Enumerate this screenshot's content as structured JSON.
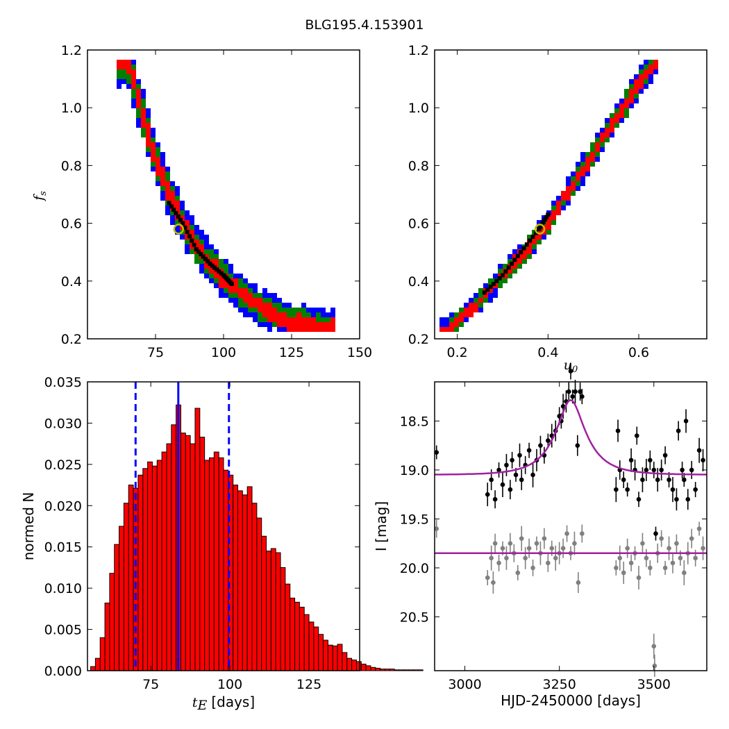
{
  "figure": {
    "title": "BLG195.4.153901"
  },
  "chart_data": [
    {
      "type": "heatmap",
      "panel": "tE-fs",
      "xlabel": "",
      "ylabel": "f_s",
      "ylabel_sub": "s",
      "xlim": [
        50,
        150
      ],
      "ylim": [
        0.2,
        1.2
      ],
      "xticks": [
        "75",
        "100",
        "125",
        "150"
      ],
      "yticks": [
        "0.2",
        "0.4",
        "0.6",
        "0.8",
        "1.0",
        "1.2"
      ],
      "levels": [
        {
          "name": "3-sigma",
          "color": "#0000ff",
          "width": 0.085
        },
        {
          "name": "2-sigma",
          "color": "#008000",
          "width": 0.058
        },
        {
          "name": "1-sigma",
          "color": "#ff0000",
          "width": 0.036
        }
      ],
      "ridge": [
        [
          65,
          1.16
        ],
        [
          70,
          0.98
        ],
        [
          75,
          0.82
        ],
        [
          80,
          0.7
        ],
        [
          85,
          0.6
        ],
        [
          90,
          0.52
        ],
        [
          95,
          0.46
        ],
        [
          100,
          0.41
        ],
        [
          105,
          0.37
        ],
        [
          110,
          0.33
        ],
        [
          115,
          0.3
        ],
        [
          120,
          0.28
        ],
        [
          125,
          0.26
        ],
        [
          130,
          0.25
        ],
        [
          140,
          0.24
        ]
      ],
      "best_fit_track": [
        [
          80,
          0.67
        ],
        [
          85,
          0.6
        ],
        [
          90,
          0.51
        ],
        [
          95,
          0.46
        ],
        [
          100,
          0.42
        ],
        [
          103,
          0.39
        ]
      ],
      "best_fit_point": [
        83.5,
        0.58
      ],
      "best_fit_color": "#bfbf00"
    },
    {
      "type": "heatmap",
      "panel": "u0-fs",
      "xlabel": "u_0",
      "xlabel_sub": "0",
      "ylabel": "",
      "xlim": [
        0.15,
        0.75
      ],
      "ylim": [
        0.2,
        1.2
      ],
      "xticks": [
        "0.2",
        "0.4",
        "0.6"
      ],
      "yticks": [
        "0.2",
        "0.4",
        "0.6",
        "0.8",
        "1.0",
        "1.2"
      ],
      "levels": [
        {
          "name": "3-sigma",
          "color": "#0000ff",
          "width": 0.05
        },
        {
          "name": "2-sigma",
          "color": "#008000",
          "width": 0.036
        },
        {
          "name": "1-sigma",
          "color": "#ff0000",
          "width": 0.022
        }
      ],
      "ridge": [
        [
          0.18,
          0.23
        ],
        [
          0.2,
          0.26
        ],
        [
          0.25,
          0.33
        ],
        [
          0.3,
          0.42
        ],
        [
          0.35,
          0.5
        ],
        [
          0.4,
          0.6
        ],
        [
          0.45,
          0.72
        ],
        [
          0.5,
          0.84
        ],
        [
          0.55,
          0.96
        ],
        [
          0.6,
          1.08
        ],
        [
          0.64,
          1.17
        ]
      ],
      "best_fit_track": [
        [
          0.26,
          0.36
        ],
        [
          0.3,
          0.42
        ],
        [
          0.34,
          0.5
        ],
        [
          0.38,
          0.58
        ],
        [
          0.4,
          0.63
        ]
      ],
      "best_fit_point": [
        0.382,
        0.58
      ],
      "best_fit_color": "#bfbf00"
    },
    {
      "type": "bar",
      "panel": "tE-histogram",
      "xlabel": "t_E",
      "xlabel_sub": "E",
      "xlabel_suffix": "[days]",
      "ylabel": "normed N",
      "xlim": [
        55,
        141
      ],
      "ylim": [
        0,
        0.035
      ],
      "xticks": [
        "75",
        "100",
        "125"
      ],
      "yticks": [
        "0.000",
        "0.005",
        "0.010",
        "0.015",
        "0.020",
        "0.025",
        "0.030",
        "0.035"
      ],
      "bar_color": "#ff0000",
      "bar_start": 56,
      "bin_width": 1.5,
      "values": [
        0.0005,
        0.0015,
        0.004,
        0.0082,
        0.0118,
        0.0153,
        0.0175,
        0.0203,
        0.0225,
        0.0221,
        0.0237,
        0.0245,
        0.0253,
        0.0248,
        0.0255,
        0.0265,
        0.0275,
        0.0298,
        0.0322,
        0.0288,
        0.0285,
        0.0275,
        0.0318,
        0.0283,
        0.0255,
        0.0258,
        0.0265,
        0.0258,
        0.0243,
        0.0237,
        0.0225,
        0.0218,
        0.0213,
        0.0223,
        0.0203,
        0.0185,
        0.0163,
        0.0145,
        0.0148,
        0.0143,
        0.0125,
        0.0105,
        0.0088,
        0.0083,
        0.0077,
        0.0068,
        0.0059,
        0.0053,
        0.0044,
        0.0037,
        0.0031,
        0.003,
        0.0032,
        0.0022,
        0.0015,
        0.0013,
        0.0011,
        0.0008,
        0.0006,
        0.0004,
        0.0003,
        0.0002,
        0.0002,
        0.0002,
        0.0001,
        0.0001,
        0.0001,
        0.0001,
        0.0001,
        0.0001
      ],
      "vlines": [
        {
          "x": 70.2,
          "style": "dashed",
          "color": "#0000ff"
        },
        {
          "x": 83.7,
          "style": "solid",
          "color": "#0000ff"
        },
        {
          "x": 99.7,
          "style": "dashed",
          "color": "#0000ff"
        }
      ]
    },
    {
      "type": "scatter",
      "panel": "light-curve",
      "xlabel": "HJD-2450000 [days]",
      "ylabel": "I [mag]",
      "xlim": [
        2920,
        3640
      ],
      "ylim": [
        21.05,
        18.1
      ],
      "xticks": [
        "3000",
        "3250",
        "3500"
      ],
      "yticks": [
        "18.5",
        "19.0",
        "19.5",
        "20.0",
        "20.5"
      ],
      "model_color": "#a020a0",
      "model": {
        "t0": 3280,
        "tE": 83.7,
        "u0": 0.382,
        "fs": 0.58,
        "baseline": 19.05
      },
      "second_model_level": 19.85,
      "series": [
        {
          "name": "",
          "color": "#000000",
          "points": [
            [
              2925,
              18.82
            ],
            [
              3060,
              19.25
            ],
            [
              3070,
              19.1
            ],
            [
              3080,
              19.3
            ],
            [
              3090,
              19.0
            ],
            [
              3100,
              19.15
            ],
            [
              3110,
              18.95
            ],
            [
              3120,
              19.2
            ],
            [
              3125,
              18.9
            ],
            [
              3135,
              19.05
            ],
            [
              3145,
              18.85
            ],
            [
              3150,
              19.1
            ],
            [
              3160,
              18.95
            ],
            [
              3170,
              18.8
            ],
            [
              3180,
              19.05
            ],
            [
              3190,
              18.9
            ],
            [
              3200,
              18.75
            ],
            [
              3210,
              18.85
            ],
            [
              3220,
              18.7
            ],
            [
              3230,
              18.65
            ],
            [
              3240,
              18.6
            ],
            [
              3250,
              18.45
            ],
            [
              3255,
              18.5
            ],
            [
              3260,
              18.35
            ],
            [
              3268,
              18.3
            ],
            [
              3275,
              18.2
            ],
            [
              3280,
              17.99
            ],
            [
              3285,
              18.25
            ],
            [
              3292,
              18.2
            ],
            [
              3298,
              18.75
            ],
            [
              3305,
              18.2
            ],
            [
              3310,
              18.25
            ],
            [
              3400,
              19.2
            ],
            [
              3405,
              18.6
            ],
            [
              3410,
              19.0
            ],
            [
              3420,
              19.1
            ],
            [
              3430,
              19.2
            ],
            [
              3440,
              18.9
            ],
            [
              3450,
              19.0
            ],
            [
              3455,
              18.65
            ],
            [
              3460,
              19.3
            ],
            [
              3470,
              19.1
            ],
            [
              3480,
              19.0
            ],
            [
              3490,
              18.9
            ],
            [
              3500,
              19.0
            ],
            [
              3505,
              19.65
            ],
            [
              3510,
              19.1
            ],
            [
              3520,
              19.0
            ],
            [
              3530,
              18.85
            ],
            [
              3540,
              19.1
            ],
            [
              3550,
              19.2
            ],
            [
              3560,
              19.3
            ],
            [
              3565,
              18.6
            ],
            [
              3575,
              19.0
            ],
            [
              3580,
              19.1
            ],
            [
              3585,
              18.5
            ],
            [
              3590,
              19.3
            ],
            [
              3600,
              19.0
            ],
            [
              3610,
              19.2
            ],
            [
              3620,
              18.8
            ],
            [
              3630,
              18.9
            ]
          ]
        },
        {
          "name": "",
          "color": "#808080",
          "points": [
            [
              2925,
              19.6
            ],
            [
              3060,
              20.1
            ],
            [
              3070,
              19.9
            ],
            [
              3075,
              20.15
            ],
            [
              3080,
              19.75
            ],
            [
              3090,
              19.95
            ],
            [
              3100,
              19.8
            ],
            [
              3110,
              19.9
            ],
            [
              3120,
              19.75
            ],
            [
              3130,
              19.85
            ],
            [
              3140,
              20.05
            ],
            [
              3150,
              19.7
            ],
            [
              3160,
              19.9
            ],
            [
              3170,
              19.8
            ],
            [
              3180,
              20.0
            ],
            [
              3190,
              19.75
            ],
            [
              3200,
              19.85
            ],
            [
              3210,
              19.7
            ],
            [
              3220,
              19.95
            ],
            [
              3230,
              19.8
            ],
            [
              3240,
              19.9
            ],
            [
              3250,
              19.85
            ],
            [
              3260,
              19.8
            ],
            [
              3270,
              19.65
            ],
            [
              3280,
              19.85
            ],
            [
              3290,
              19.75
            ],
            [
              3300,
              20.15
            ],
            [
              3310,
              19.65
            ],
            [
              3400,
              20.0
            ],
            [
              3410,
              19.9
            ],
            [
              3420,
              20.05
            ],
            [
              3430,
              19.8
            ],
            [
              3440,
              19.95
            ],
            [
              3450,
              19.85
            ],
            [
              3460,
              20.1
            ],
            [
              3470,
              19.75
            ],
            [
              3480,
              19.9
            ],
            [
              3490,
              20.0
            ],
            [
              3500,
              20.8
            ],
            [
              3502,
              21.0
            ],
            [
              3510,
              19.85
            ],
            [
              3520,
              19.7
            ],
            [
              3530,
              20.0
            ],
            [
              3540,
              19.8
            ],
            [
              3550,
              19.95
            ],
            [
              3560,
              19.75
            ],
            [
              3570,
              19.9
            ],
            [
              3580,
              20.05
            ],
            [
              3590,
              19.85
            ],
            [
              3600,
              19.7
            ],
            [
              3610,
              19.9
            ],
            [
              3620,
              19.6
            ],
            [
              3630,
              19.8
            ]
          ]
        }
      ]
    }
  ]
}
